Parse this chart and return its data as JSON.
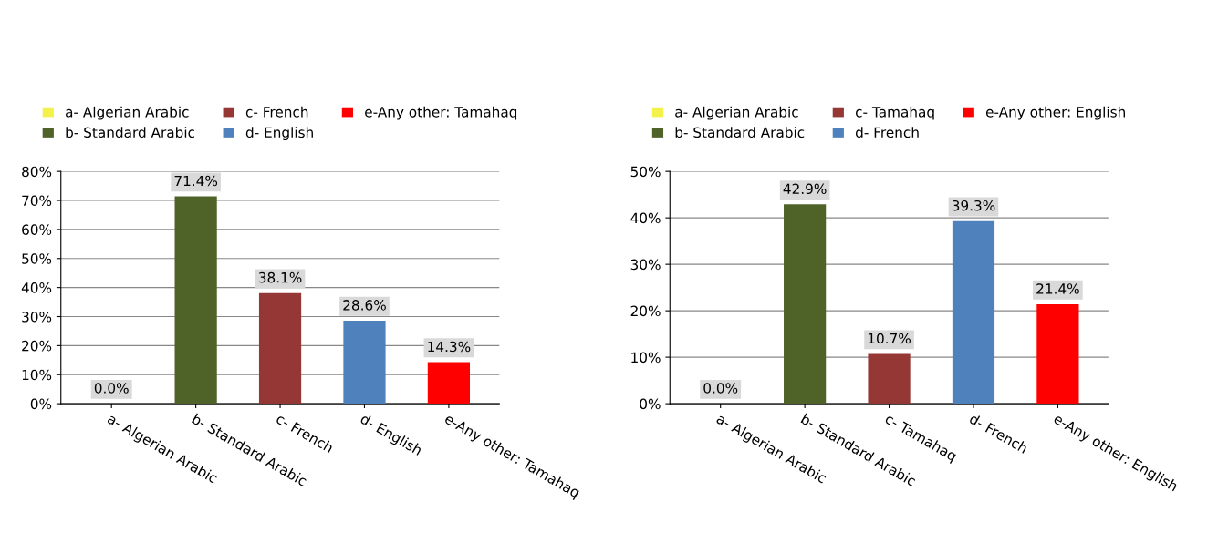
{
  "chart_data": [
    {
      "type": "bar",
      "categories": [
        "a- Algerian Arabic",
        "b- Standard Arabic",
        "c- French",
        "d- English",
        "e-Any other: Tamahaq"
      ],
      "series": [
        {
          "name": "a- Algerian Arabic",
          "color": "#f2f24a",
          "values": [
            0.0,
            null,
            null,
            null,
            null
          ],
          "value_labels": [
            "0.0%",
            null,
            null,
            null,
            null
          ]
        },
        {
          "name": "b- Standard Arabic",
          "color": "#4f6228",
          "values": [
            null,
            71.4,
            null,
            null,
            null
          ],
          "value_labels": [
            null,
            "71.4%",
            null,
            null,
            null
          ]
        },
        {
          "name": "c- French",
          "color": "#953735",
          "values": [
            null,
            null,
            38.1,
            null,
            null
          ],
          "value_labels": [
            null,
            null,
            "38.1%",
            null,
            null
          ]
        },
        {
          "name": "d- English",
          "color": "#4f81bd",
          "values": [
            null,
            null,
            null,
            28.6,
            null
          ],
          "value_labels": [
            null,
            null,
            null,
            "28.6%",
            null
          ]
        },
        {
          "name": "e-Any other: Tamahaq",
          "color": "#ff0000",
          "values": [
            null,
            null,
            null,
            null,
            14.3
          ],
          "value_labels": [
            null,
            null,
            null,
            null,
            "14.3%"
          ]
        }
      ],
      "ylim": [
        0,
        80
      ],
      "yticks": [
        {
          "value": 0,
          "label": "0%"
        },
        {
          "value": 10,
          "label": "10%"
        },
        {
          "value": 20,
          "label": "20%"
        },
        {
          "value": 30,
          "label": "30%"
        },
        {
          "value": 40,
          "label": "40%"
        },
        {
          "value": 50,
          "label": "50%"
        },
        {
          "value": 60,
          "label": "60%"
        },
        {
          "value": 70,
          "label": "70%"
        },
        {
          "value": 80,
          "label": "80%"
        }
      ],
      "grid": "y",
      "legend": "top"
    },
    {
      "type": "bar",
      "categories": [
        "a- Algerian Arabic",
        "b- Standard Arabic",
        "c- Tamahaq",
        "d- French",
        "e-Any other: English"
      ],
      "series": [
        {
          "name": "a- Algerian Arabic",
          "color": "#f2f24a",
          "values": [
            0.0,
            null,
            null,
            null,
            null
          ],
          "value_labels": [
            "0.0%",
            null,
            null,
            null,
            null
          ]
        },
        {
          "name": "b- Standard Arabic",
          "color": "#4f6228",
          "values": [
            null,
            42.9,
            null,
            null,
            null
          ],
          "value_labels": [
            null,
            "42.9%",
            null,
            null,
            null
          ]
        },
        {
          "name": "c- Tamahaq",
          "color": "#953735",
          "values": [
            null,
            null,
            10.7,
            null,
            null
          ],
          "value_labels": [
            null,
            null,
            "10.7%",
            null,
            null
          ]
        },
        {
          "name": "d- French",
          "color": "#4f81bd",
          "values": [
            null,
            null,
            null,
            39.3,
            null
          ],
          "value_labels": [
            null,
            null,
            null,
            "39.3%",
            null
          ]
        },
        {
          "name": "e-Any other: English",
          "color": "#ff0000",
          "values": [
            null,
            null,
            null,
            null,
            21.4
          ],
          "value_labels": [
            null,
            null,
            null,
            null,
            "21.4%"
          ]
        }
      ],
      "ylim": [
        0,
        50
      ],
      "yticks": [
        {
          "value": 0,
          "label": "0%"
        },
        {
          "value": 10,
          "label": "10%"
        },
        {
          "value": 20,
          "label": "20%"
        },
        {
          "value": 30,
          "label": "30%"
        },
        {
          "value": 40,
          "label": "40%"
        },
        {
          "value": 50,
          "label": "50%"
        }
      ],
      "grid": "y",
      "legend": "top"
    }
  ]
}
